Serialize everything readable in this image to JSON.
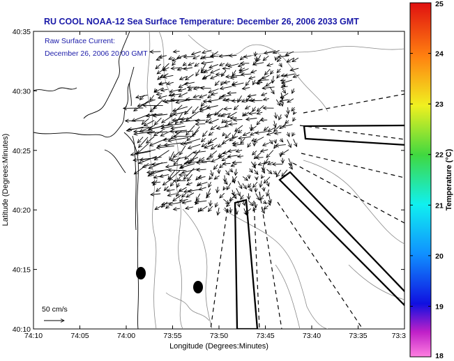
{
  "title": "RU COOL  NOAA-12  Sea Surface Temperature:  December 26, 2006 2033 GMT",
  "note_line1": "Raw Surface Current:",
  "note_line2": "December 26, 2006 20:00 GMT",
  "xlabel": "Longitude (Degrees:Minutes)",
  "ylabel": "Latitude (Degrees:Minutes)",
  "x_ticks": [
    "74:10",
    "74:05",
    "74:00",
    "73:55",
    "73:50",
    "73:45",
    "73:40",
    "73:35",
    "73:3"
  ],
  "y_ticks": [
    "40:35",
    "40:30",
    "40:25",
    "40:20",
    "40:15",
    "40:10"
  ],
  "colorbar": {
    "label": "Temperature (°C)",
    "ticks": [
      "25",
      "24",
      "23",
      "22",
      "21",
      "20",
      "19",
      "18"
    ],
    "min": 18,
    "max": 25
  },
  "scale_label": "50 cm/s",
  "colors": {
    "title_text": "#1a1aa8",
    "coast": "#000000",
    "bathymetry": "#888888",
    "vectors": "#000000"
  }
}
